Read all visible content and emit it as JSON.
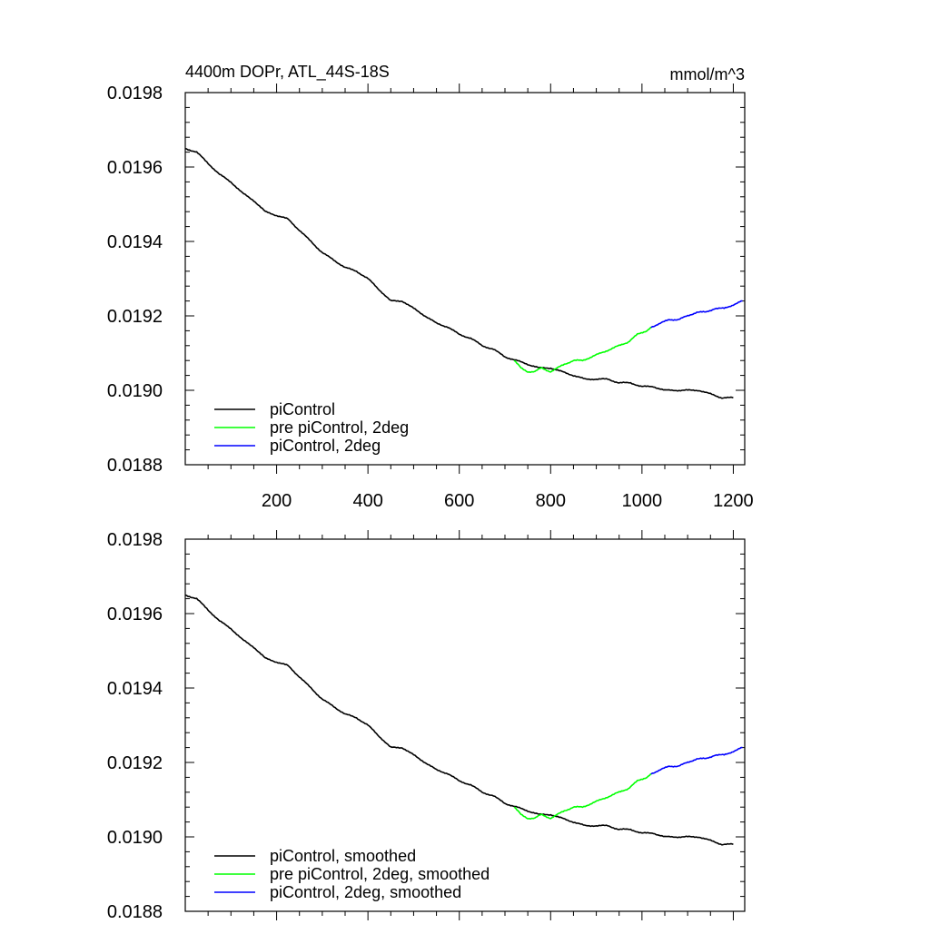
{
  "title_left": "4400m DOPr, ATL_44S-18S",
  "title_right": "mmol/m^3",
  "colors": {
    "black": "#000000",
    "green": "#00ff00",
    "blue": "#0000ff"
  },
  "chart_data": [
    {
      "type": "line",
      "title": "4400m DOPr, ATL_44S-18S",
      "units": "mmol/m^3",
      "xlim": [
        0,
        1225
      ],
      "ylim": [
        0.0188,
        0.0198
      ],
      "x_ticks": [
        200,
        400,
        600,
        800,
        1000,
        1200
      ],
      "x_tick_labels": [
        "200",
        "400",
        "600",
        "800",
        "1000",
        "1200"
      ],
      "y_ticks": [
        0.0188,
        0.019,
        0.0192,
        0.0194,
        0.0196,
        0.0198
      ],
      "y_tick_labels": [
        "0.0188",
        "0.0190",
        "0.0192",
        "0.0194",
        "0.0196",
        "0.0198"
      ],
      "legend_position": "bottom-left",
      "series": [
        {
          "name": "piControl",
          "color": "#000000",
          "x": [
            0,
            25,
            50,
            75,
            100,
            125,
            150,
            175,
            200,
            225,
            250,
            275,
            300,
            325,
            350,
            375,
            400,
            425,
            450,
            475,
            500,
            525,
            550,
            575,
            600,
            625,
            650,
            675,
            700,
            725,
            750,
            775,
            800,
            825,
            850,
            875,
            900,
            925,
            950,
            975,
            1000,
            1025,
            1050,
            1075,
            1100,
            1125,
            1150,
            1175,
            1200
          ],
          "y": [
            0.01965,
            0.01964,
            0.01961,
            0.01958,
            0.01956,
            0.01953,
            0.01951,
            0.01948,
            0.01947,
            0.01946,
            0.01943,
            0.0194,
            0.01937,
            0.01935,
            0.01933,
            0.01932,
            0.0193,
            0.01927,
            0.01924,
            0.01924,
            0.01922,
            0.0192,
            0.01918,
            0.01917,
            0.01915,
            0.01914,
            0.01912,
            0.01911,
            0.01909,
            0.01908,
            0.01907,
            0.01906,
            0.01906,
            0.01905,
            0.01904,
            0.01903,
            0.01903,
            0.01903,
            0.01902,
            0.01902,
            0.01901,
            0.01901,
            0.019,
            0.019,
            0.019,
            0.019,
            0.01899,
            0.01898,
            0.01898
          ]
        },
        {
          "name": "pre piControl, 2deg",
          "color": "#00ff00",
          "x": [
            720,
            735,
            750,
            765,
            780,
            800,
            815,
            830,
            850,
            870,
            890,
            910,
            930,
            950,
            970,
            990,
            1010,
            1020
          ],
          "y": [
            0.01908,
            0.01906,
            0.01905,
            0.01905,
            0.01906,
            0.01905,
            0.01906,
            0.01907,
            0.01908,
            0.01908,
            0.01909,
            0.0191,
            0.01911,
            0.01912,
            0.01913,
            0.01915,
            0.01916,
            0.01917
          ]
        },
        {
          "name": "piControl, 2deg",
          "color": "#0000ff",
          "x": [
            1020,
            1040,
            1060,
            1080,
            1100,
            1120,
            1140,
            1160,
            1180,
            1200,
            1220
          ],
          "y": [
            0.01917,
            0.01918,
            0.01919,
            0.01919,
            0.0192,
            0.01921,
            0.01921,
            0.01922,
            0.01922,
            0.01923,
            0.01924
          ]
        }
      ]
    },
    {
      "type": "line",
      "title": "",
      "xlim": [
        0,
        1225
      ],
      "ylim": [
        0.0188,
        0.0198
      ],
      "x_ticks": [
        200,
        400,
        600,
        800,
        1000,
        1200
      ],
      "x_tick_labels": [],
      "y_ticks": [
        0.0188,
        0.019,
        0.0192,
        0.0194,
        0.0196,
        0.0198
      ],
      "y_tick_labels": [
        "0.0188",
        "0.0190",
        "0.0192",
        "0.0194",
        "0.0196",
        "0.0198"
      ],
      "legend_position": "bottom-left",
      "series": [
        {
          "name": "piControl, smoothed",
          "color": "#000000",
          "x": [
            0,
            25,
            50,
            75,
            100,
            125,
            150,
            175,
            200,
            225,
            250,
            275,
            300,
            325,
            350,
            375,
            400,
            425,
            450,
            475,
            500,
            525,
            550,
            575,
            600,
            625,
            650,
            675,
            700,
            725,
            750,
            775,
            800,
            825,
            850,
            875,
            900,
            925,
            950,
            975,
            1000,
            1025,
            1050,
            1075,
            1100,
            1125,
            1150,
            1175,
            1200
          ],
          "y": [
            0.01965,
            0.01964,
            0.01961,
            0.01958,
            0.01956,
            0.01953,
            0.01951,
            0.01948,
            0.01947,
            0.01946,
            0.01943,
            0.0194,
            0.01937,
            0.01935,
            0.01933,
            0.01932,
            0.0193,
            0.01927,
            0.01924,
            0.01924,
            0.01922,
            0.0192,
            0.01918,
            0.01917,
            0.01915,
            0.01914,
            0.01912,
            0.01911,
            0.01909,
            0.01908,
            0.01907,
            0.01906,
            0.01906,
            0.01905,
            0.01904,
            0.01903,
            0.01903,
            0.01903,
            0.01902,
            0.01902,
            0.01901,
            0.01901,
            0.019,
            0.019,
            0.019,
            0.019,
            0.01899,
            0.01898,
            0.01898
          ]
        },
        {
          "name": "pre piControl, 2deg, smoothed",
          "color": "#00ff00",
          "x": [
            720,
            735,
            750,
            765,
            780,
            800,
            815,
            830,
            850,
            870,
            890,
            910,
            930,
            950,
            970,
            990,
            1010,
            1020
          ],
          "y": [
            0.01908,
            0.01906,
            0.01905,
            0.01905,
            0.01906,
            0.01905,
            0.01906,
            0.01907,
            0.01908,
            0.01908,
            0.01909,
            0.0191,
            0.01911,
            0.01912,
            0.01913,
            0.01915,
            0.01916,
            0.01917
          ]
        },
        {
          "name": "piControl, 2deg, smoothed",
          "color": "#0000ff",
          "x": [
            1020,
            1040,
            1060,
            1080,
            1100,
            1120,
            1140,
            1160,
            1180,
            1200,
            1220
          ],
          "y": [
            0.01917,
            0.01918,
            0.01919,
            0.01919,
            0.0192,
            0.01921,
            0.01921,
            0.01922,
            0.01922,
            0.01923,
            0.01924
          ]
        }
      ]
    }
  ]
}
